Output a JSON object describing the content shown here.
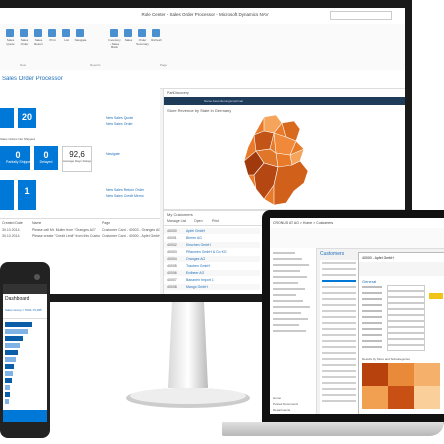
{
  "colors": {
    "accent": "#0078d7",
    "accent_dark": "#0a5ea8",
    "yellow": "#f0c419",
    "map_light": "#f5a45c",
    "map_dark": "#a0390c"
  },
  "desktop": {
    "window_title": "Role Center - Sales Order Processor - Microsoft Dynamics NAV",
    "ribbon_buttons": [
      "Sales Quote",
      "Sales Order",
      "Sales Return",
      "Print",
      "List",
      "Navigate",
      "Inventory - Sales Back Orders",
      "Sales",
      "Order Summary",
      "Refresh"
    ],
    "ribbon_groups": [
      "New",
      "Reports",
      "Page"
    ],
    "breadcrumb": "Sales Order Processor",
    "cues": [
      {
        "value": "20",
        "label": ""
      },
      {
        "value": "0",
        "label": "Partially Shipped"
      },
      {
        "value": "0",
        "label": "Delayed"
      },
      {
        "value": "92,6",
        "label": "Average Days Delayed"
      },
      {
        "value": "1",
        "label": ""
      }
    ],
    "section_label": "Sales Orders Not Shipped",
    "links": [
      "New Sales Quote",
      "New Sales Order",
      "Navigate",
      "New Sales Return Order",
      "New Sales Credit Memo"
    ],
    "activity_headers": [
      "Created Date",
      "Name",
      "Page"
    ],
    "activity_rows": [
      [
        "30.10.2014",
        "Please call Mr. Muller from \"Oranges AG\"",
        "Customer Card - 40003 - Oranges AG"
      ],
      [
        "30.10.2014",
        "Please create \"Credit Limit\" from this Customers",
        "Customer Card - 40000 - Apfel GmbH"
      ]
    ],
    "chart_pane_title": "PartDiscovery",
    "chart_title": "Store Revenue by State in Germany",
    "chart_input_value": "Name Assoziierungsmerkmal",
    "customers_title": "My Customers",
    "customers_actions": [
      "Manage List",
      "Open",
      "Print"
    ],
    "customers": [
      {
        "no": "40000",
        "name": "Apfel GmbH"
      },
      {
        "no": "40001",
        "name": "Birnen AG"
      },
      {
        "no": "40002",
        "name": "Kirschen GmbH"
      },
      {
        "no": "40003",
        "name": "Pflaumen GmbH & Co KG"
      },
      {
        "no": "40004",
        "name": "Oranges AG"
      },
      {
        "no": "40005",
        "name": "Trauben GmbH"
      },
      {
        "no": "40006",
        "name": "Erdbeer AG"
      },
      {
        "no": "40007",
        "name": "Bananen Import 1"
      },
      {
        "no": "40008",
        "name": "Mango GmbH"
      }
    ]
  },
  "laptop": {
    "address": "CRONUS AT AG > Home > Customers",
    "page_title": "Customers",
    "record_title": "40000 - Apfel GmbH",
    "section_general": "General",
    "chart_title": "Results by Store and Subcategories",
    "nav_items": [
      "Home",
      "Posted Documents",
      "Departments"
    ]
  },
  "phone": {
    "title": "Dashboard",
    "subtitle": "Sales Group = 5011-79,295"
  }
}
